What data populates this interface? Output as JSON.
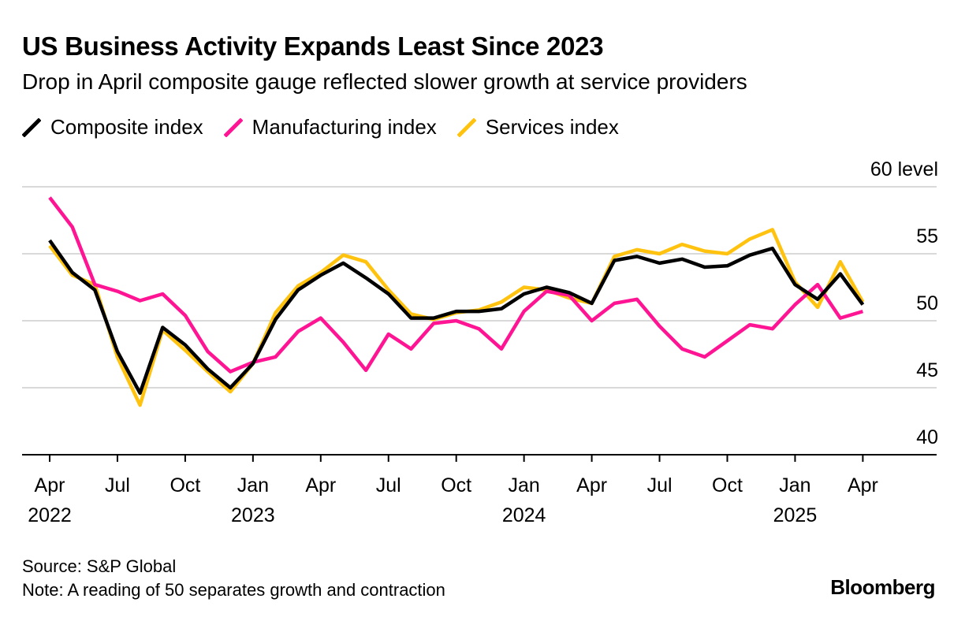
{
  "header": {
    "title": "US Business Activity Expands Least Since 2023",
    "subtitle": "Drop in April composite gauge reflected slower growth at service providers"
  },
  "footer": {
    "source": "Source: S&P Global",
    "note": "Note: A reading of 50 separates growth and contraction",
    "brand": "Bloomberg"
  },
  "chart_data": {
    "type": "line",
    "title": "US Business Activity Expands Least Since 2023",
    "subtitle": "Drop in April composite gauge reflected slower growth at service providers",
    "ylabel": "level",
    "ylim": [
      40,
      60
    ],
    "yticks": [
      40,
      45,
      50,
      55,
      60
    ],
    "ytick_labels": [
      "40",
      "45",
      "50",
      "55",
      "60 level"
    ],
    "grid": true,
    "legend_position": "top-left",
    "x": [
      "2022-04",
      "2022-05",
      "2022-06",
      "2022-07",
      "2022-08",
      "2022-09",
      "2022-10",
      "2022-11",
      "2022-12",
      "2023-01",
      "2023-02",
      "2023-03",
      "2023-04",
      "2023-05",
      "2023-06",
      "2023-07",
      "2023-08",
      "2023-09",
      "2023-10",
      "2023-11",
      "2023-12",
      "2024-01",
      "2024-02",
      "2024-03",
      "2024-04",
      "2024-05",
      "2024-06",
      "2024-07",
      "2024-08",
      "2024-09",
      "2024-10",
      "2024-11",
      "2024-12",
      "2025-01",
      "2025-02",
      "2025-03",
      "2025-04"
    ],
    "xticks": [
      {
        "month": "Apr",
        "year": "2022"
      },
      {
        "month": "Jul",
        "year": ""
      },
      {
        "month": "Oct",
        "year": ""
      },
      {
        "month": "Jan",
        "year": "2023"
      },
      {
        "month": "Apr",
        "year": ""
      },
      {
        "month": "Jul",
        "year": ""
      },
      {
        "month": "Oct",
        "year": ""
      },
      {
        "month": "Jan",
        "year": "2024"
      },
      {
        "month": "Apr",
        "year": ""
      },
      {
        "month": "Jul",
        "year": ""
      },
      {
        "month": "Oct",
        "year": ""
      },
      {
        "month": "Jan",
        "year": "2025"
      },
      {
        "month": "Apr",
        "year": ""
      }
    ],
    "series": [
      {
        "name": "Composite index",
        "color": "#000000",
        "values": [
          56.0,
          53.6,
          52.3,
          47.7,
          44.6,
          49.5,
          48.2,
          46.4,
          45.0,
          46.8,
          50.1,
          52.3,
          53.4,
          54.3,
          53.2,
          52.0,
          50.2,
          50.2,
          50.7,
          50.7,
          50.9,
          52.0,
          52.5,
          52.1,
          51.3,
          54.5,
          54.8,
          54.3,
          54.6,
          54.0,
          54.1,
          54.9,
          55.4,
          52.7,
          51.6,
          53.5,
          51.2
        ]
      },
      {
        "name": "Manufacturing index",
        "color": "#ff1493",
        "values": [
          59.2,
          57.0,
          52.7,
          52.2,
          51.5,
          52.0,
          50.4,
          47.7,
          46.2,
          46.9,
          47.3,
          49.2,
          50.2,
          48.4,
          46.3,
          49.0,
          47.9,
          49.8,
          50.0,
          49.4,
          47.9,
          50.7,
          52.2,
          51.9,
          50.0,
          51.3,
          51.6,
          49.6,
          47.9,
          47.3,
          48.5,
          49.7,
          49.4,
          51.2,
          52.7,
          50.2,
          50.7
        ]
      },
      {
        "name": "Services index",
        "color": "#ffc20e",
        "values": [
          55.6,
          53.4,
          52.7,
          47.3,
          43.7,
          49.3,
          47.8,
          46.2,
          44.7,
          46.8,
          50.6,
          52.6,
          53.6,
          54.9,
          54.4,
          52.3,
          50.5,
          50.1,
          50.6,
          50.8,
          51.4,
          52.5,
          52.3,
          51.7,
          51.3,
          54.8,
          55.3,
          55.0,
          55.7,
          55.2,
          55.0,
          56.1,
          56.8,
          52.9,
          51.0,
          54.4,
          51.4
        ]
      }
    ]
  }
}
